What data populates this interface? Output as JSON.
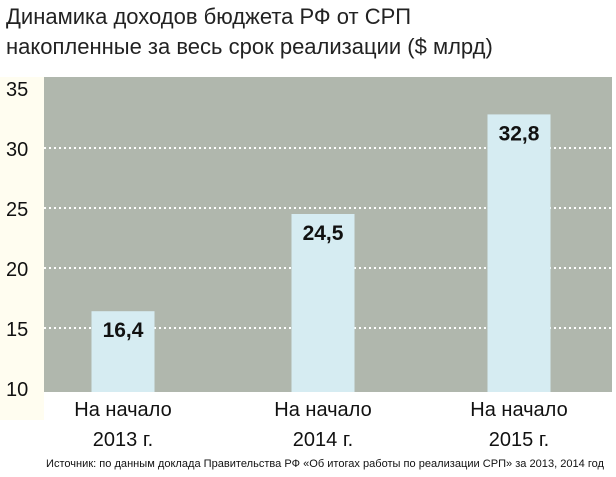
{
  "chart_data": {
    "type": "bar",
    "title": "Динамика доходов бюджета РФ от СРП",
    "subtitle": "накопленные за весь срок реализации ($ млрд)",
    "categories": [
      [
        "На начало",
        "2013 г."
      ],
      [
        "На начало",
        "2014 г."
      ],
      [
        "На начало",
        "2015 г."
      ]
    ],
    "values": [
      16.4,
      24.5,
      32.8
    ],
    "data_labels": [
      "16,4",
      "24,5",
      "32,8"
    ],
    "yticks": [
      10,
      15,
      20,
      25,
      30,
      35
    ],
    "ylim": [
      10,
      35
    ],
    "grid": true,
    "xlabel": "",
    "ylabel": "",
    "source": "Источник: по данным доклада Правительства РФ «Об итогах работы по реализации СРП» за 2013, 2014 год",
    "colors": {
      "plot_bg": "#b0b7ad",
      "bar": "#d6ecf2",
      "axis_bg": "#fffdf0",
      "grid": "#ffffff"
    }
  }
}
